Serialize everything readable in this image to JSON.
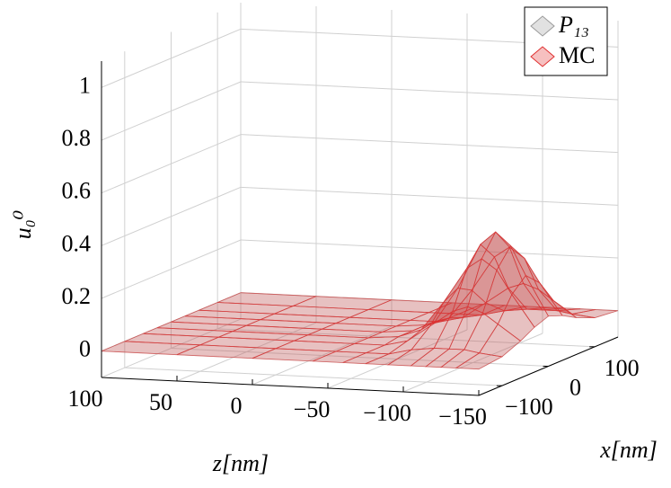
{
  "chart_data": {
    "type": "surface",
    "ylabel": "u₀⁰",
    "zlabel": "z[nm]",
    "xlabel": "x[nm]",
    "z": [
      100,
      50,
      0,
      -40,
      -60,
      -75,
      -90,
      -105,
      -115,
      -125,
      -135,
      -150
    ],
    "x": [
      -150,
      -100,
      -60,
      -30,
      0,
      30,
      60,
      100,
      150
    ],
    "zlim": [
      -150,
      100
    ],
    "xlim": [
      -150,
      150
    ],
    "ylim": [
      -0.1,
      1.1
    ],
    "zticks": [
      100,
      50,
      0,
      {
        "value": -50,
        "label": "−50"
      },
      {
        "value": -100,
        "label": "−100"
      },
      {
        "value": -150,
        "label": "−150"
      }
    ],
    "xticks": [
      {
        "value": -100,
        "label": "−100"
      },
      0,
      100
    ],
    "yticks": [
      0,
      0.2,
      0.4,
      0.6,
      0.8,
      1
    ],
    "grid": true,
    "legend": "north east",
    "series": [
      {
        "name": "P₁₃",
        "color": "#9a9a9a",
        "values": [
          [
            0,
            0,
            0,
            0,
            0,
            0,
            0,
            0,
            0
          ],
          [
            0,
            0,
            0,
            0,
            0,
            0,
            0,
            0,
            0
          ],
          [
            0,
            0,
            0,
            0,
            0,
            0,
            0,
            0,
            0
          ],
          [
            0,
            0,
            0,
            0,
            0,
            0,
            0,
            0,
            0
          ],
          [
            0,
            0,
            0,
            0.01,
            0.01,
            0.01,
            0,
            0,
            0
          ],
          [
            0,
            0,
            0.02,
            0.04,
            0.05,
            0.04,
            0.02,
            0,
            0
          ],
          [
            0,
            0.02,
            0.08,
            0.15,
            0.18,
            0.15,
            0.08,
            0.02,
            0
          ],
          [
            0,
            0.03,
            0.14,
            0.28,
            0.35,
            0.28,
            0.14,
            0.03,
            0
          ],
          [
            0,
            0.03,
            0.16,
            0.32,
            0.4,
            0.32,
            0.16,
            0.03,
            0
          ],
          [
            0,
            0.03,
            0.14,
            0.28,
            0.35,
            0.28,
            0.14,
            0.03,
            0
          ],
          [
            0,
            0.02,
            0.1,
            0.19,
            0.24,
            0.19,
            0.1,
            0.02,
            0
          ],
          [
            0,
            0.01,
            0.04,
            0.07,
            0.09,
            0.07,
            0.04,
            0.01,
            0
          ]
        ]
      },
      {
        "name": "MC",
        "color": "#e03030",
        "values": [
          [
            0,
            0,
            0,
            0,
            0,
            0,
            0,
            0,
            0
          ],
          [
            0,
            0,
            0,
            0,
            0,
            0,
            0,
            0,
            0
          ],
          [
            0,
            0,
            0,
            0,
            0,
            0,
            0,
            0,
            0
          ],
          [
            0,
            0,
            0,
            0,
            0,
            0,
            0,
            0,
            0
          ],
          [
            0,
            0,
            0,
            0.01,
            0.01,
            0.01,
            0,
            0,
            0
          ],
          [
            0,
            0,
            0.02,
            0.04,
            0.05,
            0.04,
            0.02,
            0,
            0
          ],
          [
            0,
            0.02,
            0.08,
            0.15,
            0.18,
            0.15,
            0.08,
            0.02,
            0
          ],
          [
            0,
            0.03,
            0.14,
            0.28,
            0.35,
            0.28,
            0.14,
            0.03,
            0
          ],
          [
            0,
            0.03,
            0.16,
            0.32,
            0.4,
            0.32,
            0.16,
            0.03,
            0
          ],
          [
            0,
            0.03,
            0.14,
            0.28,
            0.35,
            0.28,
            0.14,
            0.03,
            0
          ],
          [
            0,
            0.02,
            0.1,
            0.19,
            0.24,
            0.19,
            0.1,
            0.02,
            0
          ],
          [
            0,
            0.01,
            0.04,
            0.07,
            0.09,
            0.07,
            0.04,
            0.01,
            0
          ]
        ]
      }
    ]
  }
}
